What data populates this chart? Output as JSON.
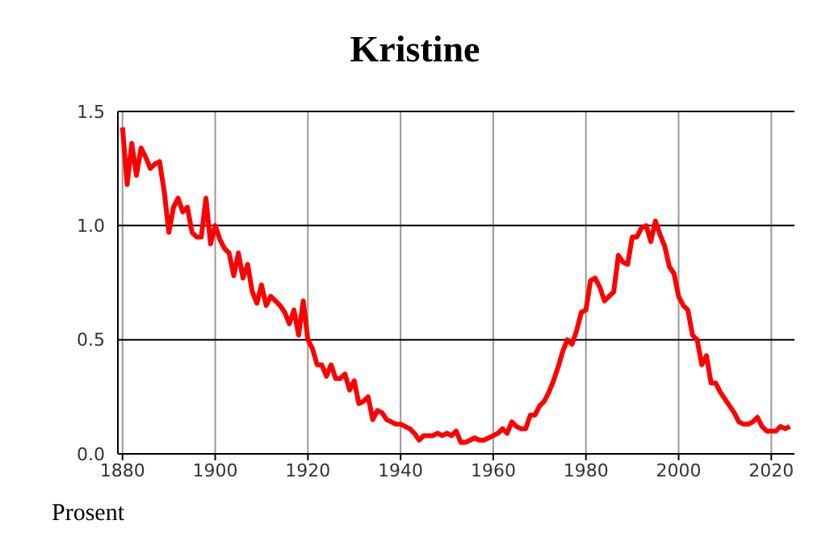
{
  "chart_data": {
    "type": "line",
    "title": "Kristine",
    "ylabel": "Prosent",
    "x": [
      1880,
      1881,
      1882,
      1883,
      1884,
      1885,
      1886,
      1887,
      1888,
      1889,
      1890,
      1891,
      1892,
      1893,
      1894,
      1895,
      1896,
      1897,
      1898,
      1899,
      1900,
      1901,
      1902,
      1903,
      1904,
      1905,
      1906,
      1907,
      1908,
      1909,
      1910,
      1911,
      1912,
      1913,
      1914,
      1915,
      1916,
      1917,
      1918,
      1919,
      1920,
      1921,
      1922,
      1923,
      1924,
      1925,
      1926,
      1927,
      1928,
      1929,
      1930,
      1931,
      1932,
      1933,
      1934,
      1935,
      1936,
      1937,
      1938,
      1939,
      1940,
      1941,
      1942,
      1943,
      1944,
      1945,
      1946,
      1947,
      1948,
      1949,
      1950,
      1951,
      1952,
      1953,
      1954,
      1955,
      1956,
      1957,
      1958,
      1959,
      1960,
      1961,
      1962,
      1963,
      1964,
      1965,
      1966,
      1967,
      1968,
      1969,
      1970,
      1971,
      1972,
      1973,
      1974,
      1975,
      1976,
      1977,
      1978,
      1979,
      1980,
      1981,
      1982,
      1983,
      1984,
      1985,
      1986,
      1987,
      1988,
      1989,
      1990,
      1991,
      1992,
      1993,
      1994,
      1995,
      1996,
      1997,
      1998,
      1999,
      2000,
      2001,
      2002,
      2003,
      2004,
      2005,
      2006,
      2007,
      2008,
      2009,
      2010,
      2011,
      2012,
      2013,
      2014,
      2015,
      2016,
      2017,
      2018,
      2019,
      2020,
      2021,
      2022,
      2023,
      2024
    ],
    "series": [
      {
        "color": "#ff0000",
        "values": [
          1.43,
          1.18,
          1.36,
          1.22,
          1.34,
          1.3,
          1.25,
          1.27,
          1.28,
          1.15,
          0.97,
          1.08,
          1.12,
          1.06,
          1.08,
          0.97,
          0.95,
          0.95,
          1.12,
          0.92,
          1.0,
          0.94,
          0.9,
          0.88,
          0.78,
          0.88,
          0.77,
          0.83,
          0.71,
          0.66,
          0.74,
          0.65,
          0.69,
          0.67,
          0.65,
          0.62,
          0.57,
          0.63,
          0.52,
          0.67,
          0.5,
          0.46,
          0.39,
          0.39,
          0.34,
          0.39,
          0.33,
          0.33,
          0.35,
          0.28,
          0.32,
          0.22,
          0.23,
          0.25,
          0.15,
          0.19,
          0.18,
          0.15,
          0.14,
          0.13,
          0.13,
          0.12,
          0.11,
          0.09,
          0.06,
          0.08,
          0.08,
          0.08,
          0.09,
          0.08,
          0.09,
          0.08,
          0.1,
          0.05,
          0.05,
          0.06,
          0.07,
          0.06,
          0.06,
          0.07,
          0.08,
          0.09,
          0.11,
          0.09,
          0.14,
          0.12,
          0.11,
          0.11,
          0.17,
          0.17,
          0.21,
          0.23,
          0.27,
          0.32,
          0.38,
          0.45,
          0.5,
          0.48,
          0.54,
          0.62,
          0.63,
          0.76,
          0.77,
          0.73,
          0.67,
          0.69,
          0.71,
          0.87,
          0.84,
          0.83,
          0.95,
          0.95,
          0.99,
          1.0,
          0.93,
          1.02,
          0.96,
          0.91,
          0.82,
          0.79,
          0.69,
          0.65,
          0.63,
          0.52,
          0.5,
          0.39,
          0.43,
          0.31,
          0.31,
          0.27,
          0.24,
          0.21,
          0.18,
          0.14,
          0.13,
          0.13,
          0.14,
          0.16,
          0.12,
          0.1,
          0.1,
          0.1,
          0.12,
          0.11,
          0.12
        ]
      }
    ],
    "xlim": [
      1879,
      2025
    ],
    "xticks": [
      1880,
      1900,
      1920,
      1940,
      1960,
      1980,
      2000,
      2020
    ],
    "ylim": [
      0,
      1.5
    ],
    "yticks": [
      {
        "value": 0,
        "label": "0.0"
      },
      {
        "value": 0.5,
        "label": "0.5"
      },
      {
        "value": 1,
        "label": "1.0"
      },
      {
        "value": 1.5,
        "label": "1.5"
      }
    ],
    "grid": true,
    "marker": "none",
    "line_style": "solid"
  }
}
